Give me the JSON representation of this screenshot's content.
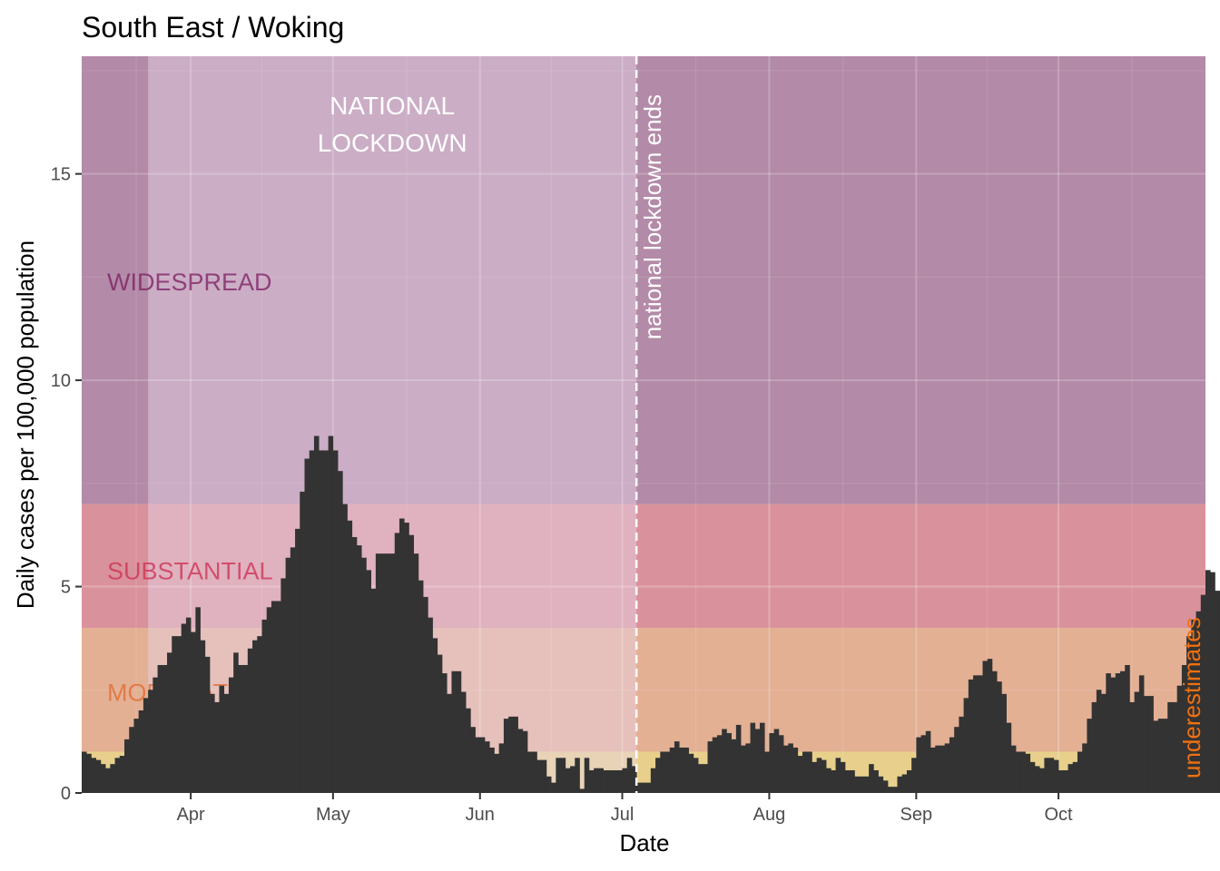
{
  "chart_data": {
    "type": "bar",
    "title": "South East / Woking",
    "xlabel": "Date",
    "ylabel": "Daily cases per 100,000 population",
    "x_start_date": "2020-03-09",
    "x_end_date": "2020-10-31",
    "x_ticks": [
      {
        "label": "Apr",
        "date": "2020-04-01"
      },
      {
        "label": "May",
        "date": "2020-05-01"
      },
      {
        "label": "Jun",
        "date": "2020-06-01"
      },
      {
        "label": "Jul",
        "date": "2020-07-01"
      },
      {
        "label": "Aug",
        "date": "2020-08-01"
      },
      {
        "label": "Sep",
        "date": "2020-09-01"
      },
      {
        "label": "Oct",
        "date": "2020-10-01"
      }
    ],
    "y_ticks": [
      0,
      5,
      10,
      15
    ],
    "ylim": [
      0,
      17.85
    ],
    "bands": [
      {
        "label": "WIDESPREAD",
        "from": 7,
        "to": 17.85,
        "color": "#b38aa7",
        "text_color": "#7b1b5f"
      },
      {
        "label": "SUBSTANTIAL",
        "from": 4,
        "to": 7,
        "color": "#d9929c",
        "text_color": "#cc2d50"
      },
      {
        "label": "MODERATE",
        "from": 1,
        "to": 4,
        "color": "#e3b094",
        "text_color": "#e06a2e"
      },
      {
        "label": "",
        "from": 0,
        "to": 1,
        "color": "#e8d08c",
        "text_color": "#e0b830"
      }
    ],
    "shaded_periods": [
      {
        "label": "NATIONAL\nLOCKDOWN",
        "start": "2020-03-23",
        "end": "2020-07-04",
        "color": "#e8d7ea"
      }
    ],
    "annotations": [
      {
        "type": "vline",
        "date": "2020-07-04",
        "label": "national lockdown ends",
        "color": "#ffffff"
      },
      {
        "type": "text",
        "label": "underestimates",
        "color": "#f07010"
      }
    ],
    "bar_color": "#333333",
    "values": [
      1.0,
      0.95,
      0.85,
      0.8,
      0.7,
      0.6,
      0.7,
      0.85,
      0.9,
      1.3,
      1.6,
      1.8,
      2.0,
      2.3,
      2.5,
      2.8,
      3.1,
      3.1,
      3.4,
      3.8,
      3.8,
      4.1,
      4.25,
      3.9,
      4.5,
      3.7,
      3.3,
      2.4,
      2.2,
      2.6,
      2.4,
      2.8,
      3.4,
      3.1,
      3.1,
      3.5,
      3.7,
      3.8,
      4.2,
      4.5,
      4.65,
      4.65,
      5.2,
      5.7,
      5.95,
      6.4,
      7.3,
      8.1,
      8.3,
      8.65,
      8.3,
      8.3,
      8.65,
      8.3,
      7.8,
      7.0,
      6.6,
      6.2,
      6.0,
      5.7,
      5.4,
      4.95,
      5.8,
      5.8,
      5.8,
      5.8,
      6.3,
      6.65,
      6.55,
      6.25,
      5.8,
      5.15,
      4.75,
      4.25,
      3.75,
      3.35,
      2.9,
      2.4,
      2.95,
      2.95,
      2.45,
      2.05,
      1.6,
      1.35,
      1.35,
      1.25,
      1.1,
      0.95,
      1.2,
      1.8,
      1.85,
      1.85,
      1.55,
      1.5,
      1.0,
      1.0,
      0.8,
      0.8,
      0.4,
      0.25,
      0.85,
      0.85,
      0.6,
      0.65,
      0.85,
      0.1,
      0.85,
      0.55,
      0.6,
      0.6,
      0.55,
      0.55,
      0.55,
      0.55,
      0.6,
      0.85,
      0.65,
      0.25,
      0.25,
      0.25,
      0.6,
      0.85,
      1.0,
      1.0,
      1.1,
      1.25,
      1.1,
      1.1,
      0.95,
      0.85,
      0.7,
      0.7,
      1.25,
      1.35,
      1.4,
      1.55,
      1.45,
      1.3,
      1.65,
      1.15,
      1.2,
      1.7,
      1.55,
      1.7,
      1.0,
      1.45,
      1.55,
      1.4,
      1.15,
      1.2,
      1.1,
      0.9,
      1.0,
      1.0,
      0.75,
      0.85,
      0.8,
      0.6,
      0.55,
      0.85,
      0.75,
      0.55,
      0.55,
      0.4,
      0.4,
      0.4,
      0.7,
      0.55,
      0.4,
      0.3,
      0.15,
      0.15,
      0.4,
      0.45,
      0.55,
      0.85,
      1.35,
      1.4,
      1.5,
      1.1,
      1.15,
      1.15,
      1.2,
      1.35,
      1.6,
      1.85,
      2.3,
      2.75,
      2.85,
      2.85,
      3.2,
      3.25,
      2.95,
      2.7,
      2.4,
      1.7,
      1.15,
      1.0,
      1.0,
      0.95,
      0.75,
      0.65,
      0.6,
      0.85,
      0.85,
      0.8,
      0.55,
      0.55,
      0.7,
      0.75,
      1.0,
      1.2,
      1.8,
      2.2,
      2.5,
      2.4,
      2.9,
      2.8,
      2.9,
      2.95,
      3.1,
      2.2,
      2.45,
      2.85,
      2.35,
      2.35,
      1.75,
      1.8,
      1.8,
      2.2,
      2.2,
      2.6,
      3.1,
      3.8,
      4.2,
      4.4,
      4.8,
      5.4,
      5.35,
      4.9,
      4.75,
      4.75,
      4.75,
      5.25,
      6.0,
      7.0,
      8.0,
      9.0,
      9.8,
      10.4,
      11.3,
      12.5,
      13.15,
      13.2,
      12.9,
      11.85,
      11.15,
      10.65,
      11.0,
      10.3,
      11.1,
      10.05,
      10.1,
      10.1,
      11.4,
      11.9,
      12.9,
      13.4,
      14.5,
      14.6,
      14.8,
      15.45,
      16.1,
      16.4,
      15.8,
      15.95,
      16.3,
      16.8,
      17.2,
      16.4,
      17.55,
      17.85,
      17.05,
      13.75,
      12.1,
      12.45,
      11.8,
      13.0,
      11.9,
      12.45,
      11.65
    ]
  }
}
